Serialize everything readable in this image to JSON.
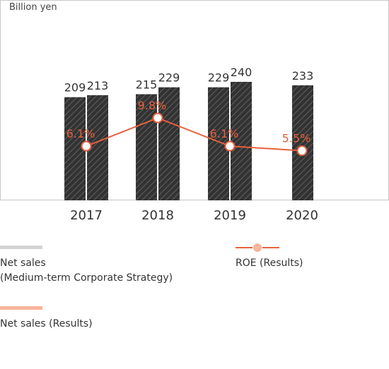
{
  "chart_data": {
    "type": "bar",
    "unit_label": "Billion yen",
    "categories": [
      "2017",
      "2018",
      "2019",
      "2020"
    ],
    "ylim": [
      0,
      260
    ],
    "series": [
      {
        "name": "Net sales\n(Medium-term Corporate Strategy)",
        "kind": "bar",
        "values": [
          209,
          215,
          229,
          null
        ],
        "labels": [
          "209",
          "215",
          "229",
          ""
        ],
        "color": "#d4d4d4"
      },
      {
        "name": "Net sales (Results)",
        "kind": "bar",
        "values": [
          213,
          229,
          240,
          233
        ],
        "labels": [
          "213",
          "229",
          "240",
          "233"
        ],
        "color": "#f8b49c"
      },
      {
        "name": "ROE (Results)",
        "kind": "line",
        "values": [
          6.1,
          9.8,
          6.1,
          5.5
        ],
        "labels": [
          "6.1%",
          "9.8%",
          "6.1%",
          "5.5%"
        ],
        "unit": "%",
        "color": "#e8603c"
      }
    ],
    "legend": [
      {
        "line1": "Net sales",
        "line2": "(Medium-term Corporate Strategy)"
      },
      {
        "line1": "ROE (Results)"
      },
      {
        "line1": "Net sales (Results)"
      }
    ],
    "grid": false,
    "legend_position": "bottom"
  }
}
